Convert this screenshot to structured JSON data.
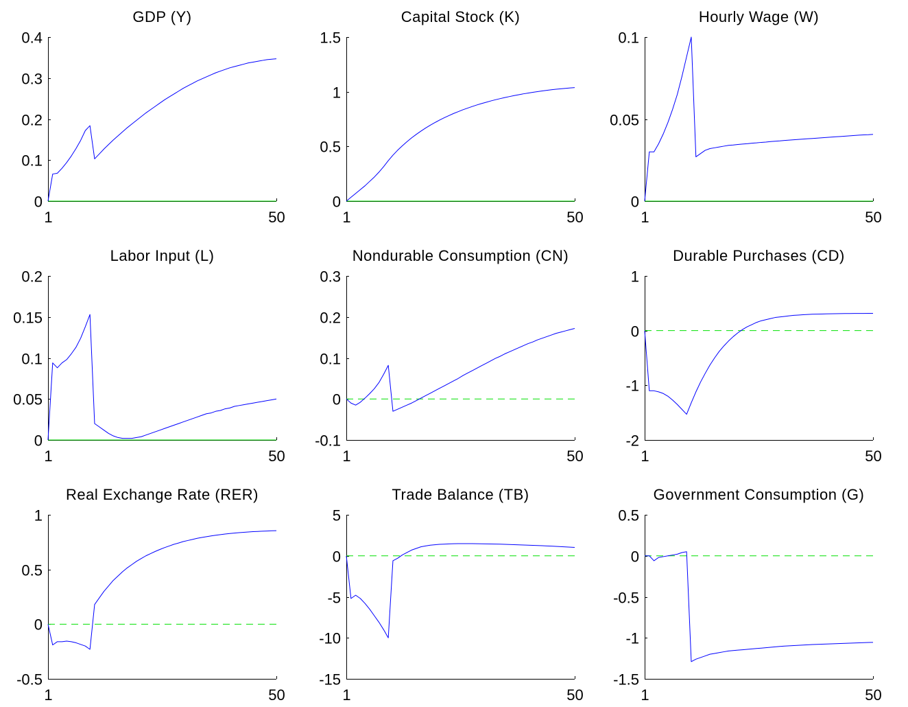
{
  "colors": {
    "series": "#0000ff",
    "zero_line": "#00e000",
    "axis": "#000000",
    "background": "#ffffff"
  },
  "chart_data": [
    {
      "type": "line",
      "title": "GDP (Y)",
      "xlabel": "",
      "ylabel": "",
      "xlim": [
        1,
        50
      ],
      "ylim": [
        0,
        0.4
      ],
      "xticks": [
        1,
        50
      ],
      "xtick_labels": [
        "1",
        "50"
      ],
      "yticks": [
        0,
        0.1,
        0.2,
        0.3,
        0.4
      ],
      "ytick_labels": [
        "0",
        "0.1",
        "0.2",
        "0.3",
        "0.4"
      ],
      "zero_line": "solid",
      "grid": false,
      "series": [
        {
          "values": [
            0,
            0.066,
            0.068,
            0.08,
            0.094,
            0.11,
            0.128,
            0.148,
            0.172,
            0.184,
            0.103,
            0.115,
            0.127,
            0.138,
            0.149,
            0.159,
            0.169,
            0.179,
            0.188,
            0.197,
            0.206,
            0.215,
            0.223,
            0.231,
            0.239,
            0.247,
            0.254,
            0.261,
            0.268,
            0.275,
            0.281,
            0.287,
            0.293,
            0.298,
            0.303,
            0.308,
            0.313,
            0.317,
            0.321,
            0.325,
            0.328,
            0.331,
            0.334,
            0.337,
            0.339,
            0.341,
            0.343,
            0.345,
            0.346,
            0.347
          ]
        }
      ]
    },
    {
      "type": "line",
      "title": "Capital Stock (K)",
      "xlabel": "",
      "ylabel": "",
      "xlim": [
        1,
        50
      ],
      "ylim": [
        0,
        1.5
      ],
      "xticks": [
        1,
        50
      ],
      "xtick_labels": [
        "1",
        "50"
      ],
      "yticks": [
        0,
        0.5,
        1,
        1.5
      ],
      "ytick_labels": [
        "0",
        "0.5",
        "1",
        "1.5"
      ],
      "zero_line": "solid",
      "grid": false,
      "series": [
        {
          "values": [
            0,
            0.035,
            0.07,
            0.105,
            0.14,
            0.18,
            0.22,
            0.265,
            0.315,
            0.37,
            0.42,
            0.465,
            0.505,
            0.543,
            0.578,
            0.61,
            0.64,
            0.668,
            0.694,
            0.718,
            0.741,
            0.762,
            0.782,
            0.801,
            0.818,
            0.835,
            0.85,
            0.865,
            0.879,
            0.892,
            0.904,
            0.916,
            0.927,
            0.937,
            0.947,
            0.956,
            0.965,
            0.973,
            0.981,
            0.988,
            0.995,
            1.001,
            1.007,
            1.013,
            1.018,
            1.023,
            1.027,
            1.031,
            1.035,
            1.038
          ]
        }
      ]
    },
    {
      "type": "line",
      "title": "Hourly Wage (W)",
      "xlabel": "",
      "ylabel": "",
      "xlim": [
        1,
        50
      ],
      "ylim": [
        0,
        0.1
      ],
      "xticks": [
        1,
        50
      ],
      "xtick_labels": [
        "1",
        "50"
      ],
      "yticks": [
        0,
        0.05,
        0.1
      ],
      "ytick_labels": [
        "0",
        "0.05",
        "0.1"
      ],
      "zero_line": "solid",
      "grid": false,
      "series": [
        {
          "values": [
            0,
            0.03,
            0.03,
            0.035,
            0.041,
            0.048,
            0.056,
            0.065,
            0.076,
            0.088,
            0.1,
            0.027,
            0.029,
            0.031,
            0.032,
            0.0325,
            0.033,
            0.0335,
            0.034,
            0.0342,
            0.0345,
            0.0348,
            0.035,
            0.0353,
            0.0355,
            0.0358,
            0.036,
            0.0363,
            0.0365,
            0.0367,
            0.037,
            0.0372,
            0.0374,
            0.0376,
            0.0378,
            0.038,
            0.0382,
            0.0384,
            0.0386,
            0.0388,
            0.039,
            0.0392,
            0.0394,
            0.0396,
            0.0398,
            0.04,
            0.0402,
            0.0404,
            0.0405,
            0.0407
          ]
        }
      ]
    },
    {
      "type": "line",
      "title": "Labor Input (L)",
      "xlabel": "",
      "ylabel": "",
      "xlim": [
        1,
        50
      ],
      "ylim": [
        0,
        0.2
      ],
      "xticks": [
        1,
        50
      ],
      "xtick_labels": [
        "1",
        "50"
      ],
      "yticks": [
        0,
        0.05,
        0.1,
        0.15,
        0.2
      ],
      "ytick_labels": [
        "0",
        "0.05",
        "0.1",
        "0.15",
        "0.2"
      ],
      "zero_line": "solid",
      "grid": false,
      "series": [
        {
          "values": [
            0,
            0.094,
            0.088,
            0.094,
            0.098,
            0.105,
            0.113,
            0.124,
            0.138,
            0.153,
            0.02,
            0.016,
            0.012,
            0.008,
            0.005,
            0.003,
            0.002,
            0.002,
            0.002,
            0.003,
            0.004,
            0.006,
            0.008,
            0.01,
            0.012,
            0.014,
            0.016,
            0.018,
            0.02,
            0.022,
            0.024,
            0.026,
            0.028,
            0.03,
            0.032,
            0.033,
            0.035,
            0.036,
            0.038,
            0.039,
            0.041,
            0.042,
            0.043,
            0.044,
            0.045,
            0.046,
            0.047,
            0.048,
            0.049,
            0.05
          ]
        }
      ]
    },
    {
      "type": "line",
      "title": "Nondurable Consumption (CN)",
      "xlabel": "",
      "ylabel": "",
      "xlim": [
        1,
        50
      ],
      "ylim": [
        -0.1,
        0.3
      ],
      "xticks": [
        1,
        50
      ],
      "xtick_labels": [
        "1",
        "50"
      ],
      "yticks": [
        -0.1,
        0,
        0.1,
        0.2,
        0.3
      ],
      "ytick_labels": [
        "-0.1",
        "0",
        "0.1",
        "0.2",
        "0.3"
      ],
      "zero_line": "dashed",
      "grid": false,
      "series": [
        {
          "values": [
            0,
            -0.01,
            -0.015,
            -0.008,
            0.002,
            0.013,
            0.025,
            0.04,
            0.06,
            0.082,
            -0.03,
            -0.025,
            -0.02,
            -0.015,
            -0.01,
            -0.004,
            0.002,
            0.008,
            0.014,
            0.02,
            0.026,
            0.032,
            0.038,
            0.044,
            0.05,
            0.057,
            0.063,
            0.069,
            0.075,
            0.081,
            0.087,
            0.093,
            0.099,
            0.104,
            0.11,
            0.115,
            0.12,
            0.125,
            0.13,
            0.135,
            0.139,
            0.144,
            0.148,
            0.152,
            0.156,
            0.16,
            0.163,
            0.166,
            0.169,
            0.172
          ]
        }
      ]
    },
    {
      "type": "line",
      "title": "Durable Purchases (CD)",
      "xlabel": "",
      "ylabel": "",
      "xlim": [
        1,
        50
      ],
      "ylim": [
        -2,
        1
      ],
      "xticks": [
        1,
        50
      ],
      "xtick_labels": [
        "1",
        "50"
      ],
      "yticks": [
        -2,
        -1,
        0,
        1
      ],
      "ytick_labels": [
        "-2",
        "-1",
        "0",
        "1"
      ],
      "zero_line": "dashed",
      "grid": false,
      "series": [
        {
          "values": [
            0,
            -1.1,
            -1.1,
            -1.12,
            -1.15,
            -1.2,
            -1.27,
            -1.35,
            -1.44,
            -1.53,
            -1.32,
            -1.12,
            -0.94,
            -0.78,
            -0.63,
            -0.5,
            -0.38,
            -0.28,
            -0.19,
            -0.11,
            -0.04,
            0.02,
            0.07,
            0.11,
            0.15,
            0.18,
            0.2,
            0.22,
            0.24,
            0.25,
            0.26,
            0.27,
            0.28,
            0.285,
            0.29,
            0.295,
            0.3,
            0.302,
            0.304,
            0.306,
            0.308,
            0.31,
            0.311,
            0.312,
            0.313,
            0.314,
            0.315,
            0.315,
            0.316,
            0.316
          ]
        }
      ]
    },
    {
      "type": "line",
      "title": "Real Exchange Rate (RER)",
      "xlabel": "",
      "ylabel": "",
      "xlim": [
        1,
        50
      ],
      "ylim": [
        -0.5,
        1
      ],
      "xticks": [
        1,
        50
      ],
      "xtick_labels": [
        "1",
        "50"
      ],
      "yticks": [
        -0.5,
        0,
        0.5,
        1
      ],
      "ytick_labels": [
        "-0.5",
        "0",
        "0.5",
        "1"
      ],
      "zero_line": "dashed",
      "grid": false,
      "series": [
        {
          "values": [
            0,
            -0.19,
            -0.16,
            -0.16,
            -0.155,
            -0.16,
            -0.17,
            -0.185,
            -0.2,
            -0.23,
            0.18,
            0.24,
            0.3,
            0.35,
            0.4,
            0.44,
            0.48,
            0.515,
            0.545,
            0.575,
            0.6,
            0.625,
            0.645,
            0.665,
            0.683,
            0.7,
            0.715,
            0.73,
            0.742,
            0.755,
            0.765,
            0.775,
            0.785,
            0.793,
            0.8,
            0.807,
            0.813,
            0.819,
            0.824,
            0.829,
            0.833,
            0.837,
            0.84,
            0.843,
            0.846,
            0.848,
            0.85,
            0.852,
            0.854,
            0.855
          ]
        }
      ]
    },
    {
      "type": "line",
      "title": "Trade Balance (TB)",
      "xlabel": "",
      "ylabel": "",
      "xlim": [
        1,
        50
      ],
      "ylim": [
        -15,
        5
      ],
      "xticks": [
        1,
        50
      ],
      "xtick_labels": [
        "1",
        "50"
      ],
      "yticks": [
        -15,
        -10,
        -5,
        0,
        5
      ],
      "ytick_labels": [
        "-15",
        "-10",
        "-5",
        "0",
        "5"
      ],
      "zero_line": "dashed",
      "grid": false,
      "series": [
        {
          "values": [
            0,
            -5.2,
            -4.8,
            -5.2,
            -5.8,
            -6.5,
            -7.3,
            -8.1,
            -9,
            -10,
            -0.6,
            -0.3,
            0.1,
            0.4,
            0.7,
            0.9,
            1.1,
            1.2,
            1.3,
            1.35,
            1.4,
            1.42,
            1.45,
            1.47,
            1.48,
            1.48,
            1.48,
            1.48,
            1.47,
            1.46,
            1.45,
            1.44,
            1.43,
            1.42,
            1.4,
            1.38,
            1.36,
            1.34,
            1.32,
            1.3,
            1.28,
            1.26,
            1.23,
            1.2,
            1.18,
            1.15,
            1.12,
            1.09,
            1.06,
            1.03
          ]
        }
      ]
    },
    {
      "type": "line",
      "title": "Government Consumption (G)",
      "xlabel": "",
      "ylabel": "",
      "xlim": [
        1,
        50
      ],
      "ylim": [
        -1.5,
        0.5
      ],
      "xticks": [
        1,
        50
      ],
      "xtick_labels": [
        "1",
        "50"
      ],
      "yticks": [
        -1.5,
        -1,
        -0.5,
        0,
        0.5
      ],
      "ytick_labels": [
        "-1.5",
        "-1",
        "-0.5",
        "0",
        "0.5"
      ],
      "zero_line": "dashed",
      "grid": false,
      "series": [
        {
          "values": [
            0,
            0,
            -0.06,
            -0.02,
            -0.01,
            0,
            0.01,
            0.02,
            0.04,
            0.05,
            -1.29,
            -1.26,
            -1.24,
            -1.22,
            -1.2,
            -1.19,
            -1.18,
            -1.17,
            -1.16,
            -1.155,
            -1.15,
            -1.145,
            -1.14,
            -1.135,
            -1.13,
            -1.125,
            -1.12,
            -1.115,
            -1.11,
            -1.105,
            -1.1,
            -1.097,
            -1.094,
            -1.091,
            -1.088,
            -1.085,
            -1.082,
            -1.079,
            -1.077,
            -1.075,
            -1.073,
            -1.071,
            -1.069,
            -1.067,
            -1.065,
            -1.063,
            -1.061,
            -1.059,
            -1.057,
            -1.055
          ]
        }
      ]
    }
  ]
}
